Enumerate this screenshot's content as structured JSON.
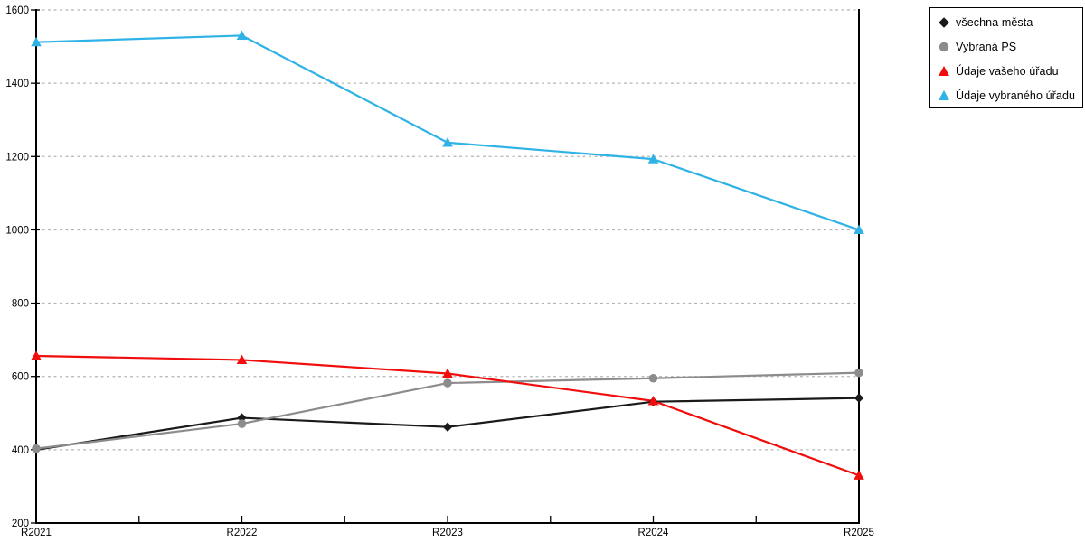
{
  "chart_data": {
    "type": "line",
    "title": "",
    "xlabel": "",
    "ylabel": "",
    "categories": [
      "R2021",
      "R2022",
      "R2023",
      "R2024",
      "R2025"
    ],
    "series": [
      {
        "name": "všechna města",
        "marker": "diamond",
        "color": "#1a1a1a",
        "values": [
          400,
          487,
          462,
          531,
          541
        ]
      },
      {
        "name": "Vybraná PS",
        "marker": "circle",
        "color": "#8c8c8c",
        "values": [
          403,
          471,
          582,
          595,
          610
        ]
      },
      {
        "name": "Údaje vašeho úřadu",
        "marker": "triangle",
        "color": "#f20d0d",
        "values": [
          656,
          645,
          608,
          533,
          330
        ]
      },
      {
        "name": "Údaje vybraného úřadu",
        "marker": "triangle",
        "color": "#2fb2e5",
        "values": [
          1512,
          1530,
          1238,
          1193,
          1000
        ]
      }
    ],
    "ylim": [
      200,
      1600
    ],
    "ytick_step": 200,
    "yticks": [
      200,
      400,
      600,
      800,
      1000,
      1200,
      1400,
      1600
    ],
    "grid": "horizontal-dashed",
    "legend_position": "top-right",
    "axis_color": "#000000",
    "grid_color": "#b5b5b5"
  }
}
